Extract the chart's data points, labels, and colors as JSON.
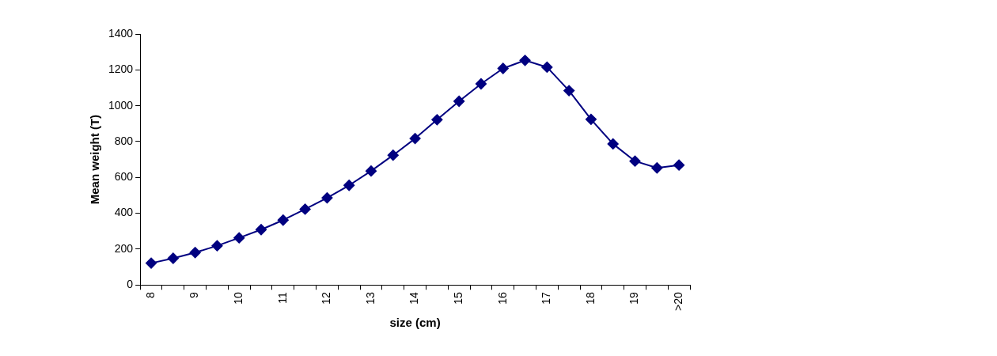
{
  "chart_data": {
    "type": "line",
    "xlabel": "size (cm)",
    "ylabel": "Mean weight (T)",
    "categories": [
      "8",
      null,
      "9",
      null,
      "10",
      null,
      "11",
      null,
      "12",
      null,
      "13",
      null,
      "14",
      null,
      "15",
      null,
      "16",
      null,
      "17",
      null,
      "18",
      null,
      "19",
      null,
      ">20"
    ],
    "series": [
      {
        "color": "#000080",
        "values": [
          122,
          149,
          181,
          219,
          263,
          309,
          362,
          423,
          486,
          556,
          636,
          724,
          817,
          922,
          1025,
          1122,
          1208,
          1253,
          1215,
          1084,
          924,
          787,
          691,
          653,
          669
        ]
      }
    ],
    "ylim": [
      0,
      1400
    ],
    "yticks": [
      0,
      200,
      400,
      600,
      800,
      1000,
      1200,
      1400
    ],
    "grid": false,
    "legend": false,
    "marker": "diamond",
    "line_style": "solid"
  }
}
